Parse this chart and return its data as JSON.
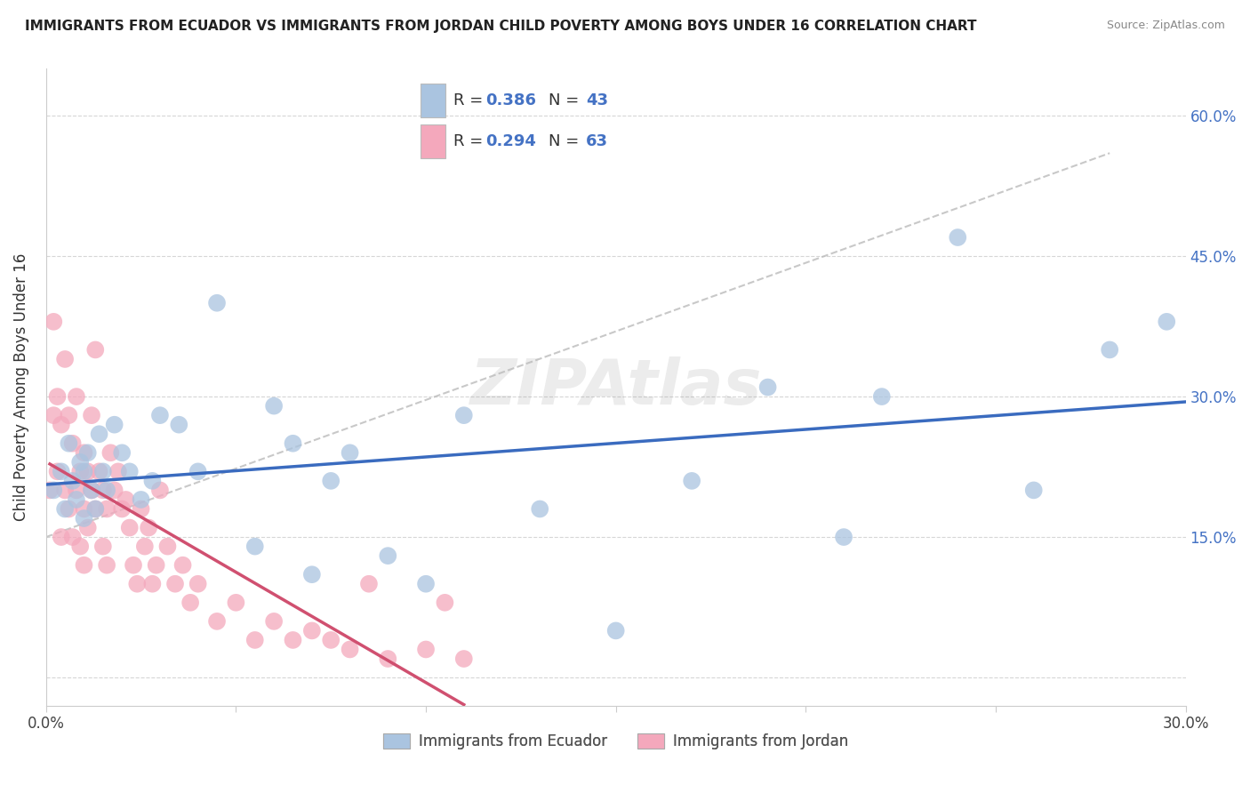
{
  "title": "IMMIGRANTS FROM ECUADOR VS IMMIGRANTS FROM JORDAN CHILD POVERTY AMONG BOYS UNDER 16 CORRELATION CHART",
  "source": "Source: ZipAtlas.com",
  "ylabel": "Child Poverty Among Boys Under 16",
  "xlim": [
    0.0,
    0.3
  ],
  "ylim": [
    -0.03,
    0.65
  ],
  "x_tick_positions": [
    0.0,
    0.05,
    0.1,
    0.15,
    0.2,
    0.25,
    0.3
  ],
  "x_tick_labels": [
    "0.0%",
    "",
    "",
    "",
    "",
    "",
    "30.0%"
  ],
  "y_tick_positions": [
    0.0,
    0.15,
    0.3,
    0.45,
    0.6
  ],
  "y_tick_labels_right": [
    "",
    "15.0%",
    "30.0%",
    "45.0%",
    "60.0%"
  ],
  "ecuador_color": "#aac4e0",
  "jordan_color": "#f4a8bc",
  "ecuador_line_color": "#3a6bbf",
  "jordan_line_color": "#d05070",
  "dashed_line_color": "#bbbbbb",
  "watermark": "ZIPAtlas",
  "ecuador_R": 0.386,
  "ecuador_N": 43,
  "jordan_R": 0.294,
  "jordan_N": 63,
  "ecuador_scatter_x": [
    0.002,
    0.004,
    0.005,
    0.006,
    0.007,
    0.008,
    0.009,
    0.01,
    0.01,
    0.011,
    0.012,
    0.013,
    0.014,
    0.015,
    0.016,
    0.018,
    0.02,
    0.022,
    0.025,
    0.028,
    0.03,
    0.035,
    0.04,
    0.045,
    0.055,
    0.06,
    0.065,
    0.07,
    0.075,
    0.08,
    0.09,
    0.1,
    0.11,
    0.13,
    0.15,
    0.17,
    0.19,
    0.21,
    0.22,
    0.24,
    0.26,
    0.28,
    0.295
  ],
  "ecuador_scatter_y": [
    0.2,
    0.22,
    0.18,
    0.25,
    0.21,
    0.19,
    0.23,
    0.22,
    0.17,
    0.24,
    0.2,
    0.18,
    0.26,
    0.22,
    0.2,
    0.27,
    0.24,
    0.22,
    0.19,
    0.21,
    0.28,
    0.27,
    0.22,
    0.4,
    0.14,
    0.29,
    0.25,
    0.11,
    0.21,
    0.24,
    0.13,
    0.1,
    0.28,
    0.18,
    0.05,
    0.21,
    0.31,
    0.15,
    0.3,
    0.47,
    0.2,
    0.35,
    0.38
  ],
  "jordan_scatter_x": [
    0.001,
    0.002,
    0.002,
    0.003,
    0.003,
    0.004,
    0.004,
    0.005,
    0.005,
    0.006,
    0.006,
    0.007,
    0.007,
    0.008,
    0.008,
    0.009,
    0.009,
    0.01,
    0.01,
    0.01,
    0.011,
    0.011,
    0.012,
    0.012,
    0.013,
    0.013,
    0.014,
    0.015,
    0.015,
    0.016,
    0.016,
    0.017,
    0.018,
    0.019,
    0.02,
    0.021,
    0.022,
    0.023,
    0.024,
    0.025,
    0.026,
    0.027,
    0.028,
    0.029,
    0.03,
    0.032,
    0.034,
    0.036,
    0.038,
    0.04,
    0.045,
    0.05,
    0.055,
    0.06,
    0.065,
    0.07,
    0.075,
    0.08,
    0.085,
    0.09,
    0.1,
    0.105,
    0.11
  ],
  "jordan_scatter_y": [
    0.2,
    0.38,
    0.28,
    0.3,
    0.22,
    0.27,
    0.15,
    0.34,
    0.2,
    0.28,
    0.18,
    0.25,
    0.15,
    0.3,
    0.2,
    0.22,
    0.14,
    0.24,
    0.18,
    0.12,
    0.22,
    0.16,
    0.28,
    0.2,
    0.35,
    0.18,
    0.22,
    0.2,
    0.14,
    0.18,
    0.12,
    0.24,
    0.2,
    0.22,
    0.18,
    0.19,
    0.16,
    0.12,
    0.1,
    0.18,
    0.14,
    0.16,
    0.1,
    0.12,
    0.2,
    0.14,
    0.1,
    0.12,
    0.08,
    0.1,
    0.06,
    0.08,
    0.04,
    0.06,
    0.04,
    0.05,
    0.04,
    0.03,
    0.1,
    0.02,
    0.03,
    0.08,
    0.02
  ]
}
